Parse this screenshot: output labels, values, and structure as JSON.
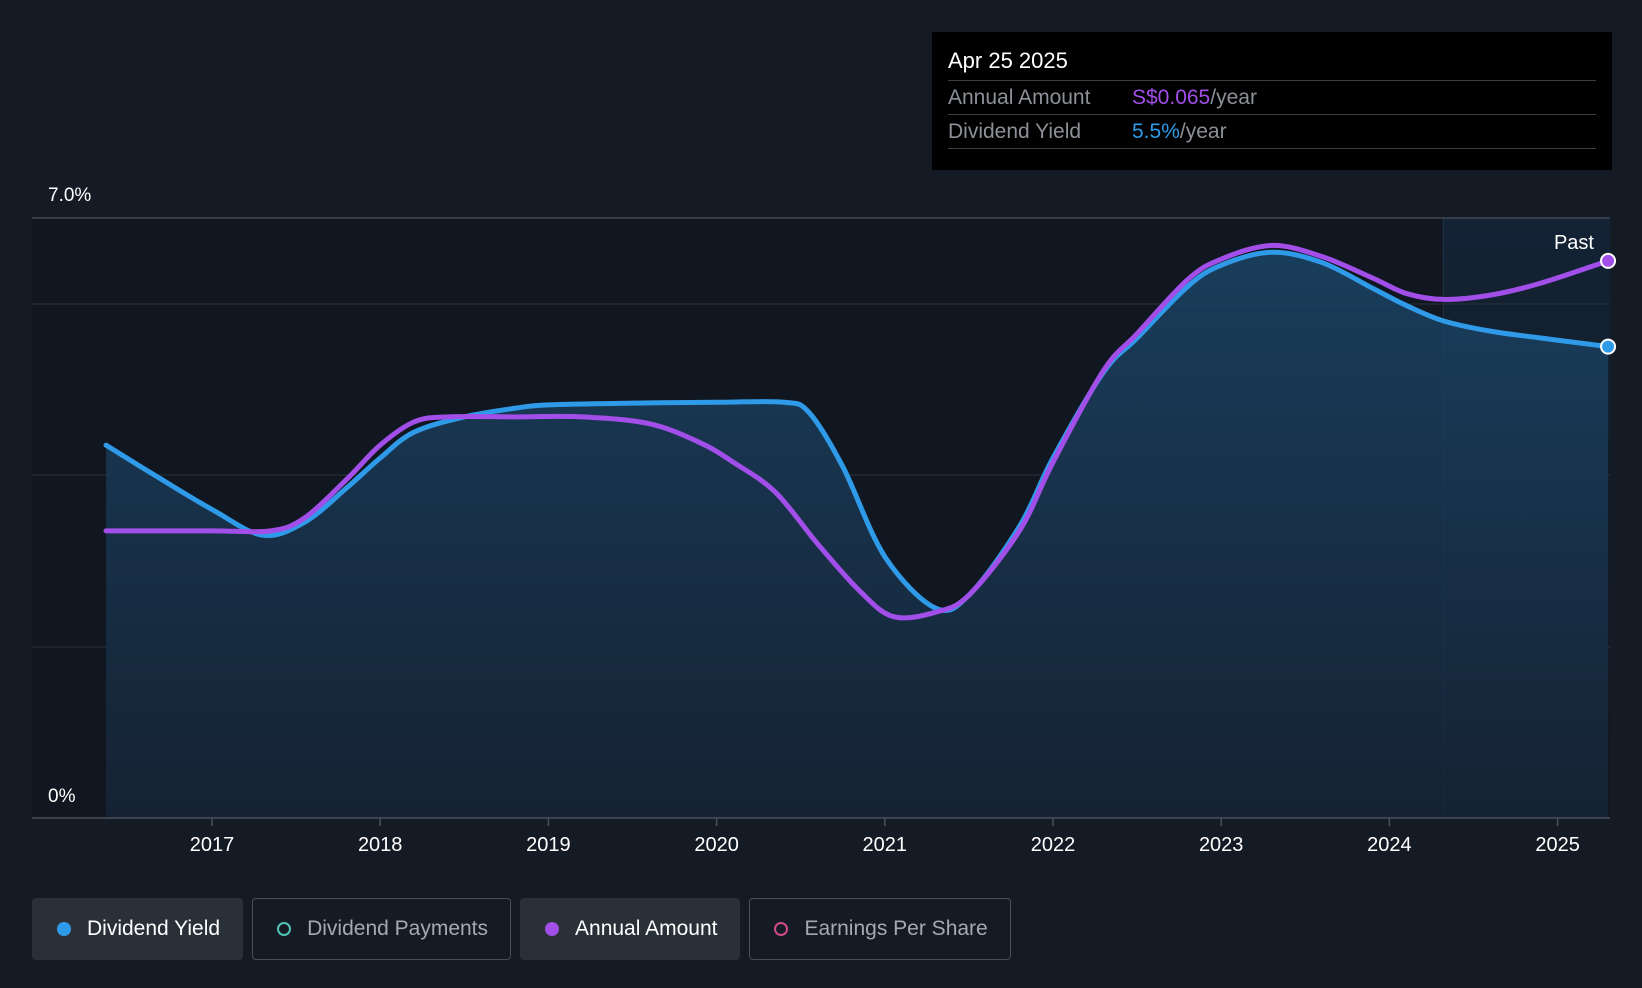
{
  "colors": {
    "dividend_yield": "#2f9ae8",
    "annual_amount": "#a24ee8",
    "dividend_payments": "#52c3b6",
    "earnings_per_share": "#d04a86",
    "background": "#151b24"
  },
  "tooltip": {
    "date": "Apr 25 2025",
    "rows": [
      {
        "label": "Annual Amount",
        "value": "S$0.065",
        "unit": "/year",
        "color": "#a24ee8"
      },
      {
        "label": "Dividend Yield",
        "value": "5.5%",
        "unit": "/year",
        "color": "#2f9ae8"
      }
    ]
  },
  "legend": [
    {
      "label": "Dividend Yield",
      "active": true,
      "marker": "filled",
      "color": "#2f9ae8"
    },
    {
      "label": "Dividend Payments",
      "active": false,
      "marker": "hollow",
      "color": "#52c3b6"
    },
    {
      "label": "Annual Amount",
      "active": true,
      "marker": "filled",
      "color": "#a24ee8"
    },
    {
      "label": "Earnings Per Share",
      "active": false,
      "marker": "hollow",
      "color": "#d04a86"
    }
  ],
  "chart_data": {
    "type": "line",
    "title": "",
    "xlabel": "",
    "ylabel": "",
    "y_tick_labels": [
      "0%",
      "7.0%"
    ],
    "ylim": [
      0,
      7.0
    ],
    "xlim": [
      2016.0,
      2025.3
    ],
    "x_ticks": [
      2017,
      2018,
      2019,
      2020,
      2021,
      2022,
      2023,
      2024,
      2025
    ],
    "past_label": "Past",
    "past_start": 2024.32,
    "grid": true,
    "legend_position": "bottom",
    "series": [
      {
        "name": "Dividend Yield",
        "color": "#2f9ae8",
        "filled": true,
        "points": [
          [
            2016.37,
            4.35
          ],
          [
            2016.7,
            3.95
          ],
          [
            2017.0,
            3.6
          ],
          [
            2017.3,
            3.3
          ],
          [
            2017.55,
            3.45
          ],
          [
            2017.8,
            3.85
          ],
          [
            2018.0,
            4.2
          ],
          [
            2018.2,
            4.5
          ],
          [
            2018.5,
            4.68
          ],
          [
            2018.8,
            4.78
          ],
          [
            2019.0,
            4.82
          ],
          [
            2019.5,
            4.84
          ],
          [
            2020.0,
            4.85
          ],
          [
            2020.4,
            4.85
          ],
          [
            2020.55,
            4.73
          ],
          [
            2020.75,
            4.1
          ],
          [
            2021.0,
            3.05
          ],
          [
            2021.3,
            2.45
          ],
          [
            2021.5,
            2.6
          ],
          [
            2021.8,
            3.4
          ],
          [
            2022.0,
            4.2
          ],
          [
            2022.3,
            5.2
          ],
          [
            2022.5,
            5.6
          ],
          [
            2022.8,
            6.2
          ],
          [
            2023.0,
            6.45
          ],
          [
            2023.3,
            6.6
          ],
          [
            2023.6,
            6.48
          ],
          [
            2023.9,
            6.18
          ],
          [
            2024.1,
            5.98
          ],
          [
            2024.32,
            5.8
          ],
          [
            2024.6,
            5.68
          ],
          [
            2024.9,
            5.6
          ],
          [
            2025.3,
            5.5
          ]
        ]
      },
      {
        "name": "Annual Amount",
        "color": "#a24ee8",
        "filled": false,
        "points": [
          [
            2016.37,
            3.35
          ],
          [
            2017.0,
            3.35
          ],
          [
            2017.35,
            3.35
          ],
          [
            2017.55,
            3.5
          ],
          [
            2017.8,
            3.95
          ],
          [
            2018.0,
            4.35
          ],
          [
            2018.2,
            4.62
          ],
          [
            2018.4,
            4.68
          ],
          [
            2018.8,
            4.68
          ],
          [
            2019.2,
            4.68
          ],
          [
            2019.6,
            4.6
          ],
          [
            2019.9,
            4.38
          ],
          [
            2020.1,
            4.15
          ],
          [
            2020.35,
            3.8
          ],
          [
            2020.6,
            3.2
          ],
          [
            2020.85,
            2.65
          ],
          [
            2021.05,
            2.35
          ],
          [
            2021.3,
            2.4
          ],
          [
            2021.5,
            2.6
          ],
          [
            2021.8,
            3.35
          ],
          [
            2022.0,
            4.15
          ],
          [
            2022.3,
            5.22
          ],
          [
            2022.5,
            5.65
          ],
          [
            2022.8,
            6.28
          ],
          [
            2023.0,
            6.52
          ],
          [
            2023.3,
            6.68
          ],
          [
            2023.6,
            6.55
          ],
          [
            2023.9,
            6.3
          ],
          [
            2024.1,
            6.12
          ],
          [
            2024.32,
            6.05
          ],
          [
            2024.6,
            6.1
          ],
          [
            2024.9,
            6.24
          ],
          [
            2025.3,
            6.5
          ]
        ]
      }
    ]
  }
}
